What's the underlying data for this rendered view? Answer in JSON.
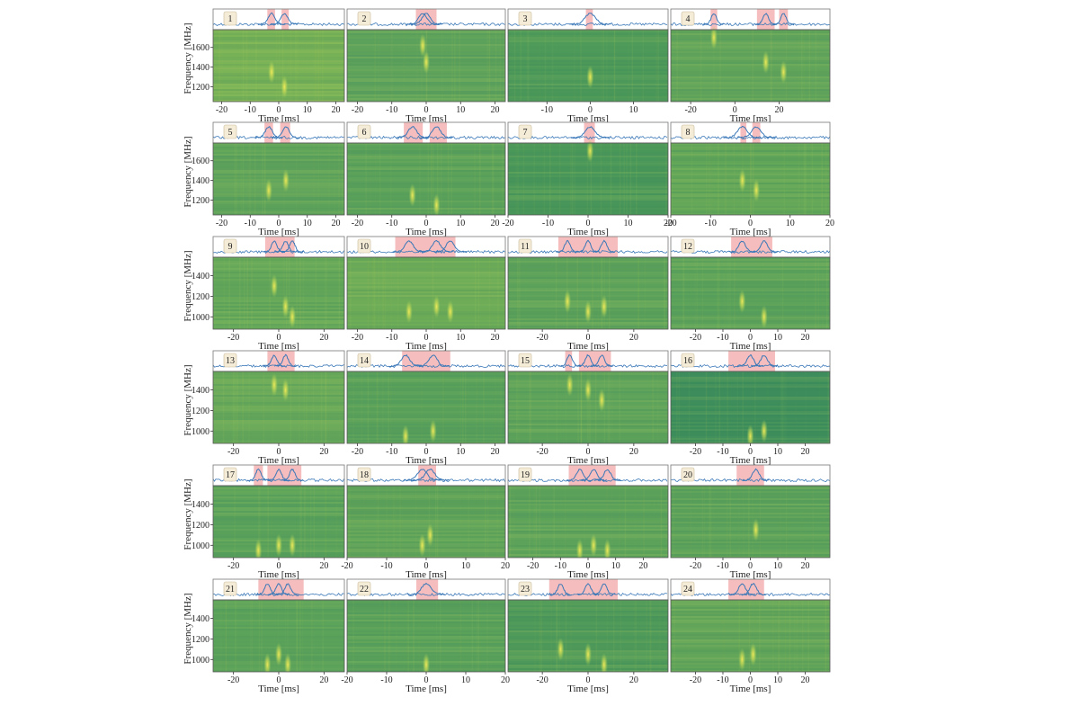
{
  "chart_data": [
    {
      "type": "waterfall",
      "label": "1",
      "xlabel": "Time [ms]",
      "ylabel": "Frequency [MHz]",
      "xlim": [
        -23,
        23
      ],
      "xticks": [
        -20,
        -10,
        0,
        10,
        20
      ],
      "ylim": [
        1050,
        1780
      ],
      "yticks": [
        1200,
        1400,
        1600
      ],
      "bg": "#78b257",
      "highlights": [
        [
          -4,
          -1.3
        ],
        [
          1,
          3.5
        ]
      ],
      "pulses": [
        {
          "t": -2.5,
          "f": 1350
        },
        {
          "t": 2,
          "f": 1200
        }
      ]
    },
    {
      "type": "waterfall",
      "label": "2",
      "xlabel": "Time [ms]",
      "xlim": [
        -23,
        23
      ],
      "xticks": [
        -20,
        -10,
        0,
        10,
        20
      ],
      "ylim": [
        1050,
        1780
      ],
      "bg": "#5fa35c",
      "highlights": [
        [
          -3,
          3
        ]
      ],
      "pulses": [
        {
          "t": -1,
          "f": 1620
        },
        {
          "t": 0,
          "f": 1450
        }
      ]
    },
    {
      "type": "waterfall",
      "label": "3",
      "xlabel": "Time [ms]",
      "xlim": [
        -19,
        18
      ],
      "xticks": [
        -10,
        0,
        10
      ],
      "ylim": [
        1050,
        1780
      ],
      "bg": "#4e9a5a",
      "highlights": [
        [
          -1,
          0.6
        ]
      ],
      "pulses": [
        {
          "t": 0,
          "f": 1300
        }
      ]
    },
    {
      "type": "waterfall",
      "label": "4",
      "xlabel": "Time [ms]",
      "xlim": [
        -29,
        43
      ],
      "xticks": [
        -20,
        0,
        20
      ],
      "ylim": [
        1050,
        1780
      ],
      "bg": "#62a55b",
      "highlights": [
        [
          -11,
          -8
        ],
        [
          10,
          18
        ],
        [
          20,
          24
        ]
      ],
      "pulses": [
        {
          "t": -9.5,
          "f": 1700
        },
        {
          "t": 14,
          "f": 1450
        },
        {
          "t": 22,
          "f": 1350
        }
      ]
    },
    {
      "type": "waterfall",
      "label": "5",
      "xlabel": "Time [ms]",
      "ylabel": "Frequency [MHz]",
      "xlim": [
        -23,
        23
      ],
      "xticks": [
        -20,
        -10,
        0,
        10,
        20
      ],
      "ylim": [
        1050,
        1780
      ],
      "yticks": [
        1200,
        1400,
        1600
      ],
      "bg": "#5ea35b",
      "highlights": [
        [
          -5,
          -2
        ],
        [
          0.5,
          4
        ]
      ],
      "pulses": [
        {
          "t": -3.5,
          "f": 1300
        },
        {
          "t": 2.5,
          "f": 1400
        }
      ]
    },
    {
      "type": "waterfall",
      "label": "6",
      "xlabel": "Time [ms]",
      "xlim": [
        -23,
        23
      ],
      "xticks": [
        -20,
        -10,
        0,
        10,
        20
      ],
      "ylim": [
        1050,
        1780
      ],
      "bg": "#5ca25b",
      "highlights": [
        [
          -6.5,
          -1
        ],
        [
          1,
          6
        ]
      ],
      "pulses": [
        {
          "t": -4,
          "f": 1250
        },
        {
          "t": 3,
          "f": 1150
        }
      ]
    },
    {
      "type": "waterfall",
      "label": "7",
      "xlabel": "Time [ms]",
      "xlim": [
        -20,
        20
      ],
      "xticks": [
        -20,
        -10,
        0,
        10,
        20
      ],
      "ylim": [
        1050,
        1780
      ],
      "bg": "#4b985a",
      "highlights": [
        [
          -1,
          1.7
        ]
      ],
      "pulses": [
        {
          "t": 0.5,
          "f": 1700
        }
      ]
    },
    {
      "type": "waterfall",
      "label": "8",
      "xlabel": "Time [ms]",
      "xlim": [
        -20,
        20
      ],
      "xticks": [
        -20,
        -10,
        0,
        10,
        20
      ],
      "ylim": [
        1050,
        1780
      ],
      "bg": "#62a659",
      "highlights": [
        [
          -2.5,
          -1
        ],
        [
          0.5,
          2.5
        ]
      ],
      "pulses": [
        {
          "t": -2,
          "f": 1400
        },
        {
          "t": 1.5,
          "f": 1300
        }
      ]
    },
    {
      "type": "waterfall",
      "label": "9",
      "xlabel": "Time [ms]",
      "ylabel": "Frequency [MHz]",
      "xlim": [
        -29,
        29
      ],
      "xticks": [
        -20,
        0,
        20
      ],
      "ylim": [
        880,
        1580
      ],
      "yticks": [
        1000,
        1200,
        1400
      ],
      "bg": "#65a85a",
      "highlights": [
        [
          -6,
          7
        ]
      ],
      "pulses": [
        {
          "t": -2,
          "f": 1300
        },
        {
          "t": 3,
          "f": 1100
        },
        {
          "t": 6,
          "f": 1000
        }
      ]
    },
    {
      "type": "waterfall",
      "label": "10",
      "xlabel": "Time [ms]",
      "xlim": [
        -23,
        23
      ],
      "xticks": [
        -20,
        -10,
        0,
        10,
        20
      ],
      "ylim": [
        880,
        1580
      ],
      "bg": "#6dac58",
      "highlights": [
        [
          -9,
          8.5
        ]
      ],
      "pulses": [
        {
          "t": -5,
          "f": 1050
        },
        {
          "t": 3,
          "f": 1100
        },
        {
          "t": 7,
          "f": 1050
        }
      ]
    },
    {
      "type": "waterfall",
      "label": "11",
      "xlabel": "Time [ms]",
      "xlim": [
        -35,
        35
      ],
      "xticks": [
        -20,
        0,
        20
      ],
      "ylim": [
        880,
        1580
      ],
      "bg": "#5ea35b",
      "highlights": [
        [
          -13,
          13
        ]
      ],
      "pulses": [
        {
          "t": -9,
          "f": 1150
        },
        {
          "t": 0,
          "f": 1050
        },
        {
          "t": 7,
          "f": 1100
        }
      ]
    },
    {
      "type": "waterfall",
      "label": "12",
      "xlabel": "Time [ms]",
      "xlim": [
        -29,
        29
      ],
      "xticks": [
        -20,
        -10,
        0,
        10,
        20
      ],
      "ylim": [
        880,
        1580
      ],
      "bg": "#5da35b",
      "highlights": [
        [
          -7,
          8
        ]
      ],
      "pulses": [
        {
          "t": -3,
          "f": 1150
        },
        {
          "t": 5,
          "f": 1000
        }
      ]
    },
    {
      "type": "waterfall",
      "label": "13",
      "xlabel": "Time [ms]",
      "ylabel": "Frequency [MHz]",
      "xlim": [
        -29,
        29
      ],
      "xticks": [
        -20,
        0,
        20
      ],
      "ylim": [
        880,
        1580
      ],
      "yticks": [
        1000,
        1200,
        1400
      ],
      "bg": "#66a85a",
      "highlights": [
        [
          -5,
          7
        ]
      ],
      "pulses": [
        {
          "t": -2,
          "f": 1450
        },
        {
          "t": 3,
          "f": 1400
        }
      ]
    },
    {
      "type": "waterfall",
      "label": "14",
      "xlabel": "Time [ms]",
      "xlim": [
        -23,
        23
      ],
      "xticks": [
        -20,
        -10,
        0,
        10,
        20
      ],
      "ylim": [
        880,
        1580
      ],
      "bg": "#5aa15b",
      "highlights": [
        [
          -7,
          7
        ]
      ],
      "pulses": [
        {
          "t": -6,
          "f": 950
        },
        {
          "t": 2,
          "f": 1000
        }
      ]
    },
    {
      "type": "waterfall",
      "label": "15",
      "xlabel": "Time [ms]",
      "xlim": [
        -35,
        35
      ],
      "xticks": [
        -20,
        0,
        20
      ],
      "ylim": [
        880,
        1580
      ],
      "bg": "#5ea35b",
      "highlights": [
        [
          -10,
          -7
        ],
        [
          -4,
          10
        ]
      ],
      "pulses": [
        {
          "t": -8,
          "f": 1450
        },
        {
          "t": 0,
          "f": 1400
        },
        {
          "t": 6,
          "f": 1300
        }
      ]
    },
    {
      "type": "waterfall",
      "label": "16",
      "xlabel": "Time [ms]",
      "xlim": [
        -29,
        29
      ],
      "xticks": [
        -20,
        -10,
        0,
        10,
        20
      ],
      "ylim": [
        880,
        1580
      ],
      "bg": "#3f8f5c",
      "highlights": [
        [
          -8,
          9
        ]
      ],
      "pulses": [
        {
          "t": 0,
          "f": 950
        },
        {
          "t": 5,
          "f": 1000
        }
      ]
    },
    {
      "type": "waterfall",
      "label": "17",
      "xlabel": "Time [ms]",
      "ylabel": "Frequency [MHz]",
      "xlim": [
        -29,
        29
      ],
      "xticks": [
        -20,
        0,
        20
      ],
      "ylim": [
        880,
        1580
      ],
      "yticks": [
        1000,
        1200,
        1400
      ],
      "bg": "#5aa25b",
      "highlights": [
        [
          -11,
          -7
        ],
        [
          -5,
          10
        ]
      ],
      "pulses": [
        {
          "t": -9,
          "f": 950
        },
        {
          "t": 0,
          "f": 1000
        },
        {
          "t": 6,
          "f": 1000
        }
      ]
    },
    {
      "type": "waterfall",
      "label": "18",
      "xlabel": "Time [ms]",
      "xlim": [
        -20,
        20
      ],
      "xticks": [
        -20,
        -10,
        0,
        10,
        20
      ],
      "ylim": [
        880,
        1580
      ],
      "bg": "#60a45a",
      "highlights": [
        [
          -2,
          2.5
        ]
      ],
      "pulses": [
        {
          "t": -1,
          "f": 1000
        },
        {
          "t": 1,
          "f": 1100
        }
      ]
    },
    {
      "type": "waterfall",
      "label": "19",
      "xlabel": "Time [ms]",
      "xlim": [
        -29,
        29
      ],
      "xticks": [
        -20,
        -10,
        0,
        10,
        20
      ],
      "ylim": [
        880,
        1580
      ],
      "bg": "#5ea35b",
      "highlights": [
        [
          -7,
          10
        ]
      ],
      "pulses": [
        {
          "t": -3,
          "f": 950
        },
        {
          "t": 2,
          "f": 1000
        },
        {
          "t": 7,
          "f": 950
        }
      ]
    },
    {
      "type": "waterfall",
      "label": "20",
      "xlabel": "Time [ms]",
      "xlim": [
        -29,
        29
      ],
      "xticks": [
        -20,
        -10,
        0,
        10,
        20
      ],
      "ylim": [
        880,
        1580
      ],
      "bg": "#5ea35b",
      "highlights": [
        [
          -5,
          5
        ]
      ],
      "pulses": [
        {
          "t": 2,
          "f": 1150
        }
      ]
    },
    {
      "type": "waterfall",
      "label": "21",
      "xlabel": "Time [ms]",
      "ylabel": "Frequency [MHz]",
      "xlim": [
        -29,
        29
      ],
      "xticks": [
        -20,
        0,
        20
      ],
      "ylim": [
        880,
        1580
      ],
      "yticks": [
        1000,
        1200,
        1400
      ],
      "bg": "#5ca35b",
      "highlights": [
        [
          -9,
          11
        ]
      ],
      "pulses": [
        {
          "t": -5,
          "f": 950
        },
        {
          "t": 0,
          "f": 1050
        },
        {
          "t": 4,
          "f": 950
        }
      ]
    },
    {
      "type": "waterfall",
      "label": "22",
      "xlabel": "Time [ms]",
      "xlim": [
        -20,
        20
      ],
      "xticks": [
        -20,
        -10,
        0,
        10,
        20
      ],
      "ylim": [
        880,
        1580
      ],
      "bg": "#5aa15b",
      "highlights": [
        [
          -2.5,
          3
        ]
      ],
      "pulses": [
        {
          "t": 0,
          "f": 950
        }
      ]
    },
    {
      "type": "waterfall",
      "label": "23",
      "xlabel": "Time [ms]",
      "xlim": [
        -35,
        35
      ],
      "xticks": [
        -20,
        0,
        20
      ],
      "ylim": [
        880,
        1580
      ],
      "bg": "#4f9a5a",
      "highlights": [
        [
          -17,
          13
        ]
      ],
      "pulses": [
        {
          "t": -12,
          "f": 1100
        },
        {
          "t": 0,
          "f": 1050
        },
        {
          "t": 7,
          "f": 950
        }
      ]
    },
    {
      "type": "waterfall",
      "label": "24",
      "xlabel": "Time [ms]",
      "xlim": [
        -29,
        29
      ],
      "xticks": [
        -20,
        -10,
        0,
        10,
        20
      ],
      "ylim": [
        880,
        1580
      ],
      "bg": "#62a55a",
      "highlights": [
        [
          -8,
          5
        ]
      ],
      "pulses": [
        {
          "t": -3,
          "f": 1000
        },
        {
          "t": 1,
          "f": 1050
        }
      ]
    }
  ]
}
